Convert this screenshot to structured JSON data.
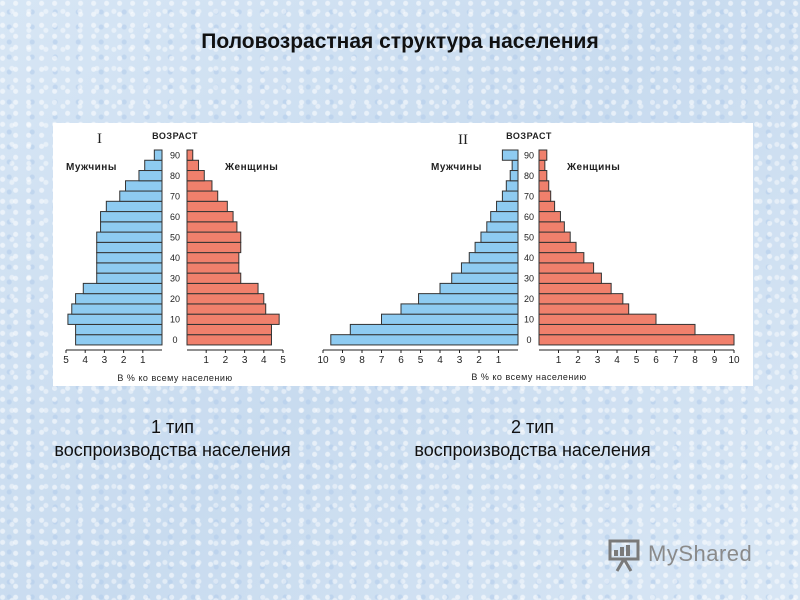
{
  "title": "Половозрастная структура населения",
  "captions": [
    {
      "line1": "1 тип",
      "line2": "воспроизводства населения"
    },
    {
      "line1": "2 тип",
      "line2": "воспроизводства населения"
    }
  ],
  "brand": {
    "text": "MyShared",
    "icon": "presentation-board-icon"
  },
  "colors": {
    "male": "#8ecbf1",
    "female": "#f0806c",
    "outline": "#333333"
  },
  "chart_data": [
    {
      "type": "bar",
      "numeral": "I",
      "age_label": "ВОЗРАСТ",
      "male_label": "Мужчины",
      "female_label": "Женщины",
      "xlabel": "В % ко всему населению",
      "age_ticks": [
        "0",
        "10",
        "20",
        "30",
        "40",
        "50",
        "60",
        "70",
        "80",
        "90"
      ],
      "x_ticks_male": [
        "5",
        "4",
        "3",
        "2",
        "1"
      ],
      "x_ticks_female": [
        "1",
        "2",
        "3",
        "4",
        "5"
      ],
      "xlim": [
        0,
        5
      ],
      "series": [
        {
          "name": "Мужчины",
          "values": [
            4.5,
            4.5,
            4.9,
            4.7,
            4.5,
            4.1,
            3.4,
            3.4,
            3.4,
            3.4,
            3.4,
            3.2,
            3.2,
            2.9,
            2.2,
            1.9,
            1.2,
            0.9,
            0.4
          ]
        },
        {
          "name": "Женщины",
          "values": [
            4.4,
            4.4,
            4.8,
            4.1,
            4.0,
            3.7,
            2.8,
            2.7,
            2.7,
            2.8,
            2.8,
            2.6,
            2.4,
            2.1,
            1.6,
            1.3,
            0.9,
            0.6,
            0.3
          ]
        }
      ]
    },
    {
      "type": "bar",
      "numeral": "II",
      "age_label": "ВОЗРАСТ",
      "male_label": "Мужчины",
      "female_label": "Женщины",
      "xlabel": "В % ко всему населению",
      "age_ticks": [
        "0",
        "10",
        "20",
        "30",
        "40",
        "50",
        "60",
        "70",
        "80",
        "90"
      ],
      "x_ticks_male": [
        "10",
        "9",
        "8",
        "7",
        "6",
        "5",
        "4",
        "3",
        "2",
        "1"
      ],
      "x_ticks_female": [
        "1",
        "2",
        "3",
        "4",
        "5",
        "6",
        "7",
        "8",
        "9",
        "10"
      ],
      "xlim": [
        0,
        10
      ],
      "series": [
        {
          "name": "Мужчины",
          "values": [
            9.6,
            8.6,
            7.0,
            6.0,
            5.1,
            4.0,
            3.4,
            2.9,
            2.5,
            2.2,
            1.9,
            1.6,
            1.4,
            1.1,
            0.8,
            0.6,
            0.4,
            0.3,
            0.8
          ]
        },
        {
          "name": "Женщины",
          "values": [
            10.0,
            8.0,
            6.0,
            4.6,
            4.3,
            3.7,
            3.2,
            2.8,
            2.3,
            1.9,
            1.6,
            1.3,
            1.1,
            0.8,
            0.6,
            0.5,
            0.4,
            0.3,
            0.4
          ]
        }
      ]
    }
  ]
}
